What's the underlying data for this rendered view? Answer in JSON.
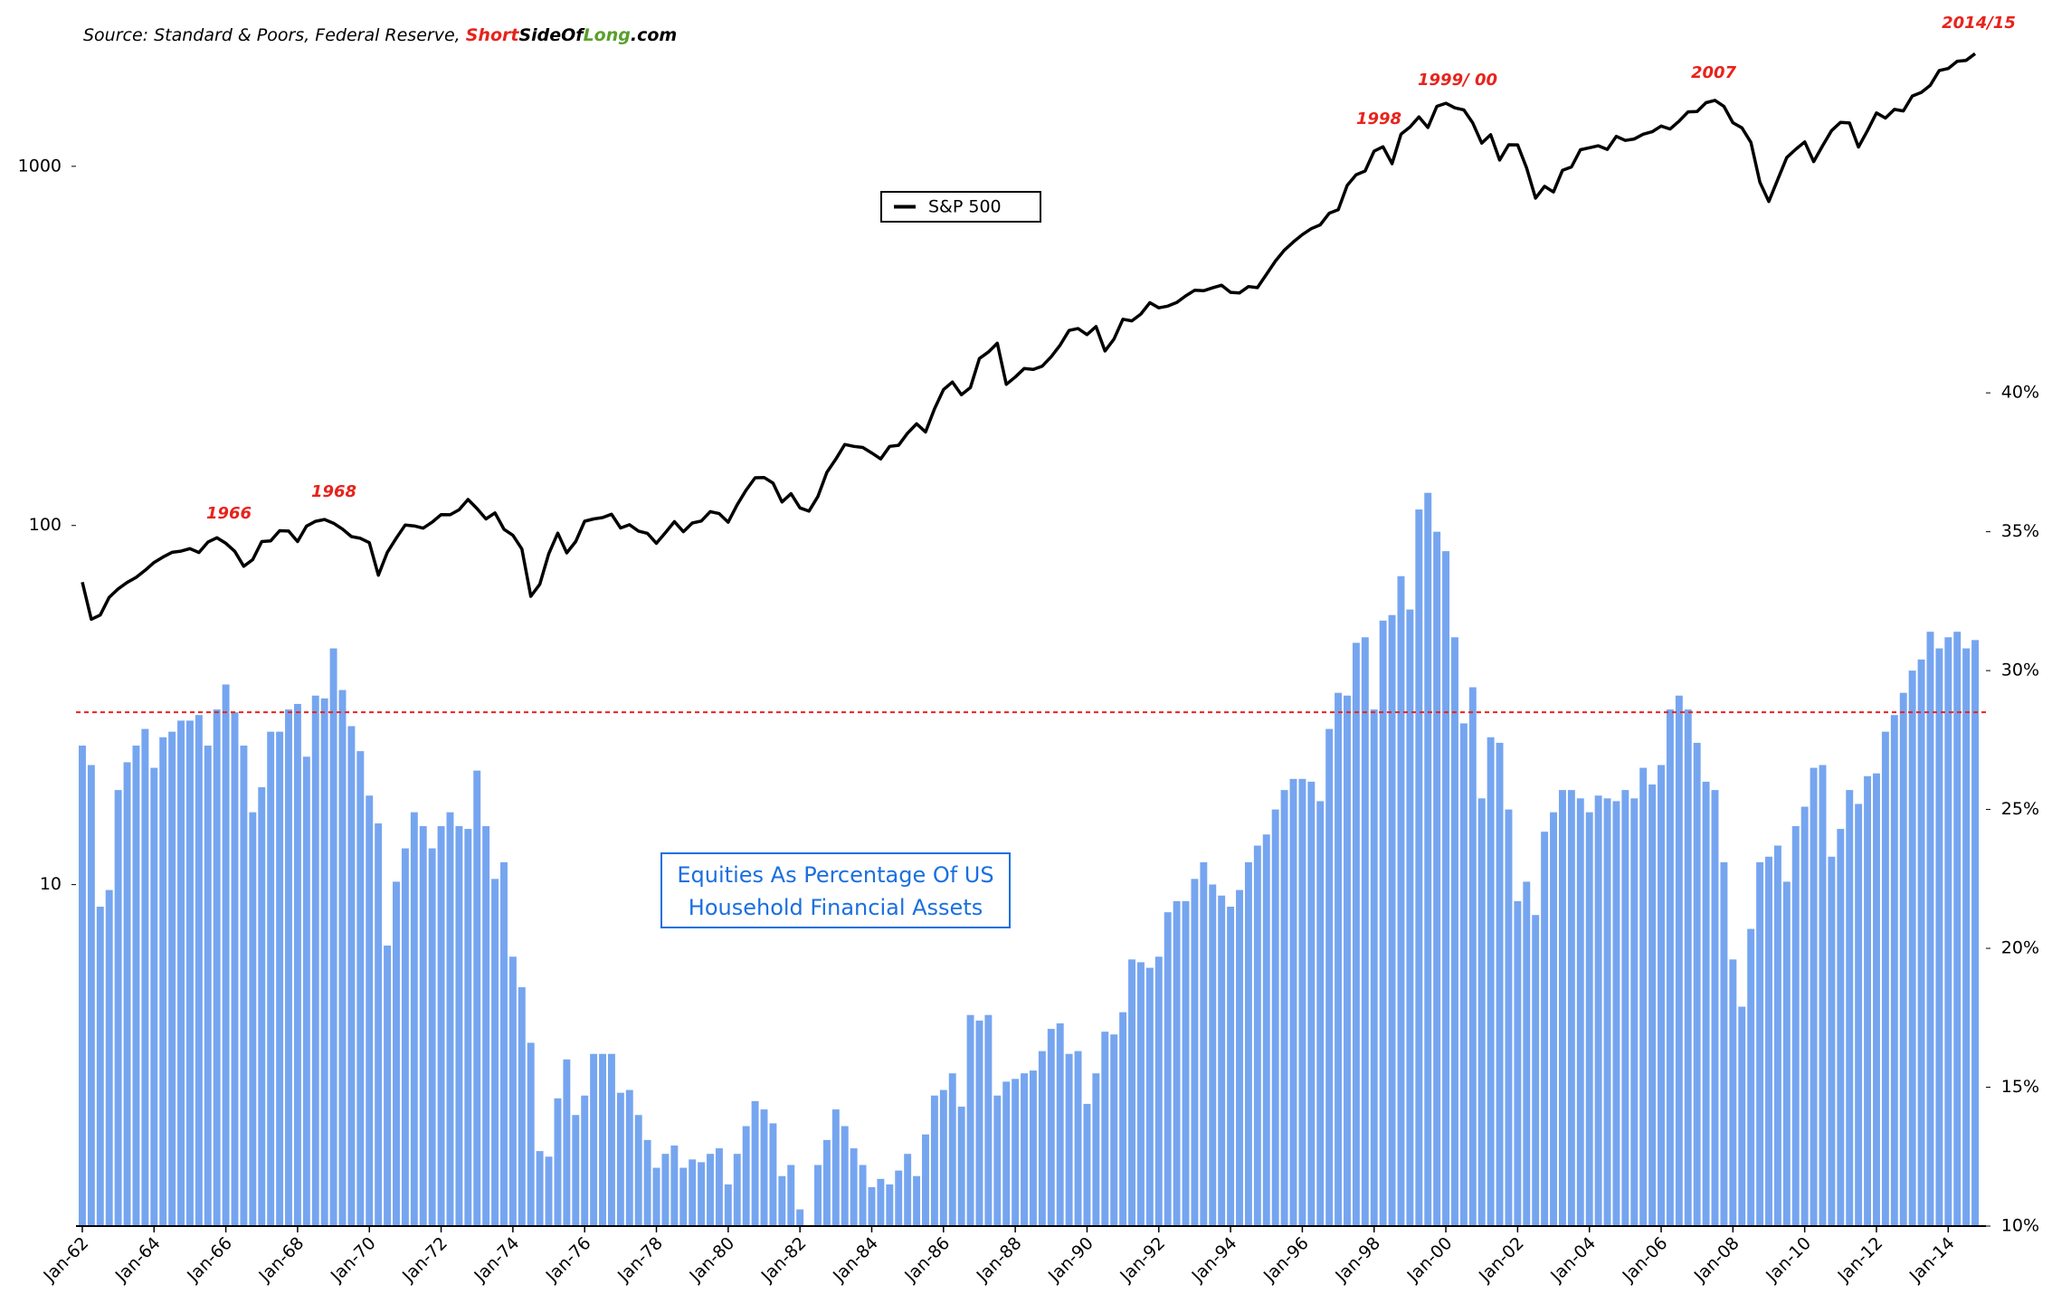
{
  "chart_data": {
    "type": "combo",
    "source": [
      "Source: Standard & Poors, Federal Reserve, ",
      "Short",
      "SideOf",
      "Long",
      ".com"
    ],
    "legend": "S&P 500",
    "annotations": [
      "1966",
      "1968",
      "1998",
      "1999/ 00",
      "2007",
      "2014/15"
    ],
    "ylog": true,
    "ylim": [
      1.12,
      2455
    ],
    "yticks": [
      10,
      100,
      1000
    ],
    "y2lim": [
      10,
      53.2
    ],
    "y2ticks": [
      {
        "value": 10,
        "label": "10%"
      },
      {
        "value": 15,
        "label": "15%"
      },
      {
        "value": 20,
        "label": "20%"
      },
      {
        "value": 25,
        "label": "25%"
      },
      {
        "value": 30,
        "label": "30%"
      },
      {
        "value": 35,
        "label": "35%"
      },
      {
        "value": 40,
        "label": "40%"
      }
    ],
    "hline": {
      "value": 28.5,
      "color": "#e8231c",
      "axis": "y2"
    },
    "categories": [
      "Jan-62",
      null,
      null,
      null,
      null,
      null,
      null,
      null,
      "Jan-64",
      null,
      null,
      null,
      null,
      null,
      null,
      null,
      "Jan-66",
      null,
      null,
      null,
      null,
      null,
      null,
      null,
      "Jan-68",
      null,
      null,
      null,
      null,
      null,
      null,
      null,
      "Jan-70",
      null,
      null,
      null,
      null,
      null,
      null,
      null,
      "Jan-72",
      null,
      null,
      null,
      null,
      null,
      null,
      null,
      "Jan-74",
      null,
      null,
      null,
      null,
      null,
      null,
      null,
      "Jan-76",
      null,
      null,
      null,
      null,
      null,
      null,
      null,
      "Jan-78",
      null,
      null,
      null,
      null,
      null,
      null,
      null,
      "Jan-80",
      null,
      null,
      null,
      null,
      null,
      null,
      null,
      "Jan-82",
      null,
      null,
      null,
      null,
      null,
      null,
      null,
      "Jan-84",
      null,
      null,
      null,
      null,
      null,
      null,
      null,
      "Jan-86",
      null,
      null,
      null,
      null,
      null,
      null,
      null,
      "Jan-88",
      null,
      null,
      null,
      null,
      null,
      null,
      null,
      "Jan-90",
      null,
      null,
      null,
      null,
      null,
      null,
      null,
      "Jan-92",
      null,
      null,
      null,
      null,
      null,
      null,
      null,
      "Jan-94",
      null,
      null,
      null,
      null,
      null,
      null,
      null,
      "Jan-96",
      null,
      null,
      null,
      null,
      null,
      null,
      null,
      "Jan-98",
      null,
      null,
      null,
      null,
      null,
      null,
      null,
      "Jan-00",
      null,
      null,
      null,
      null,
      null,
      null,
      null,
      "Jan-02",
      null,
      null,
      null,
      null,
      null,
      null,
      null,
      "Jan-04",
      null,
      null,
      null,
      null,
      null,
      null,
      null,
      "Jan-06",
      null,
      null,
      null,
      null,
      null,
      null,
      null,
      "Jan-08",
      null,
      null,
      null,
      null,
      null,
      null,
      null,
      "Jan-10",
      null,
      null,
      null,
      null,
      null,
      null,
      null,
      "Jan-12",
      null,
      null,
      null,
      null,
      null,
      null,
      null,
      "Jan-14",
      null,
      null,
      null
    ],
    "series": [
      {
        "name": "Equities As Percentage Of US Household Financial Assets",
        "type": "bar",
        "axis": "y2",
        "color": "#76a5f0",
        "values": [
          27.3,
          26.6,
          21.5,
          22.1,
          25.7,
          26.7,
          27.3,
          27.9,
          26.5,
          27.6,
          27.8,
          28.2,
          28.2,
          28.4,
          27.3,
          28.6,
          29.5,
          28.5,
          27.3,
          24.9,
          25.8,
          27.8,
          27.8,
          28.6,
          28.8,
          26.9,
          29.1,
          29.0,
          30.8,
          29.3,
          28.0,
          27.1,
          25.5,
          24.5,
          20.1,
          22.4,
          23.6,
          24.9,
          24.4,
          23.6,
          24.4,
          24.9,
          24.4,
          24.3,
          26.4,
          24.4,
          22.5,
          23.1,
          19.7,
          18.6,
          16.6,
          12.7,
          12.5,
          14.6,
          16.0,
          14.0,
          14.7,
          16.2,
          16.2,
          16.2,
          14.8,
          14.9,
          14.0,
          13.1,
          12.1,
          12.6,
          12.9,
          12.1,
          12.4,
          12.3,
          12.6,
          12.8,
          11.5,
          12.6,
          13.6,
          14.5,
          14.2,
          13.7,
          11.8,
          12.2,
          10.6,
          10.0,
          12.2,
          13.1,
          14.2,
          13.6,
          12.8,
          12.2,
          11.4,
          11.7,
          11.5,
          12.0,
          12.6,
          11.8,
          13.3,
          14.7,
          14.9,
          15.5,
          14.3,
          17.6,
          17.4,
          17.6,
          14.7,
          15.2,
          15.3,
          15.5,
          15.6,
          16.3,
          17.1,
          17.3,
          16.2,
          16.3,
          14.4,
          15.5,
          17.0,
          16.9,
          17.7,
          19.6,
          19.5,
          19.3,
          19.7,
          21.3,
          21.7,
          21.7,
          22.5,
          23.1,
          22.3,
          21.9,
          21.5,
          22.1,
          23.1,
          23.7,
          24.1,
          25.0,
          25.7,
          26.1,
          26.1,
          26.0,
          25.3,
          27.9,
          29.2,
          29.1,
          31.0,
          31.2,
          28.6,
          31.8,
          32.0,
          33.4,
          32.2,
          35.8,
          36.4,
          35.0,
          34.3,
          31.2,
          28.1,
          29.4,
          25.4,
          27.6,
          27.4,
          25.0,
          21.7,
          22.4,
          21.2,
          24.2,
          24.9,
          25.7,
          25.7,
          25.4,
          24.9,
          25.5,
          25.4,
          25.3,
          25.7,
          25.4,
          26.5,
          25.9,
          26.6,
          28.6,
          29.1,
          28.6,
          27.4,
          26.0,
          25.7,
          23.1,
          19.6,
          17.9,
          20.7,
          23.1,
          23.3,
          23.7,
          22.4,
          24.4,
          25.1,
          26.5,
          26.6,
          23.3,
          24.3,
          25.7,
          25.2,
          26.2,
          26.3,
          27.8,
          28.4,
          29.2,
          30.0,
          30.4,
          31.4,
          30.8,
          31.2,
          31.4,
          30.8,
          31.1
        ]
      },
      {
        "name": "S&P 500",
        "type": "line",
        "axis": "y",
        "color": "#000000",
        "values": [
          69.5,
          54.8,
          56.3,
          63.1,
          66.6,
          69.4,
          71.7,
          75.0,
          78.9,
          81.7,
          84.2,
          84.8,
          86.2,
          84.1,
          89.9,
          92.4,
          89.2,
          84.7,
          77.0,
          80.3,
          90.2,
          90.6,
          96.7,
          96.5,
          90.2,
          99.6,
          102.7,
          103.9,
          101.5,
          97.7,
          93.1,
          92.1,
          89.6,
          72.7,
          84.2,
          92.2,
          100.3,
          99.7,
          98.3,
          102.1,
          107.2,
          107.1,
          110.6,
          118.1,
          111.5,
          104.3,
          108.4,
          97.6,
          93.9,
          86.0,
          63.5,
          68.6,
          83.4,
          95.2,
          83.9,
          90.2,
          102.8,
          104.3,
          105.2,
          107.5,
          98.4,
          100.5,
          96.5,
          95.1,
          89.2,
          95.5,
          102.5,
          96.1,
          101.6,
          102.9,
          109.3,
          107.9,
          102.1,
          114.2,
          125.5,
          135.8,
          136.0,
          131.2,
          116.2,
          122.6,
          111.9,
          109.6,
          120.4,
          140.6,
          153.0,
          168.1,
          166.1,
          164.9,
          159.2,
          153.2,
          166.1,
          167.2,
          180.7,
          191.9,
          182.1,
          211.3,
          238.9,
          250.8,
          231.3,
          242.2,
          291.7,
          304.0,
          321.8,
          247.1,
          258.9,
          273.5,
          271.9,
          277.7,
          294.9,
          317.9,
          349.2,
          353.4,
          339.9,
          358.0,
          306.1,
          330.2,
          375.2,
          371.2,
          387.9,
          417.1,
          403.7,
          408.1,
          417.8,
          435.7,
          451.7,
          450.5,
          458.9,
          466.5,
          445.8,
          444.3,
          462.7,
          459.3,
          500.7,
          544.8,
          584.4,
          615.9,
          645.5,
          670.6,
          687.3,
          740.7,
          757.1,
          885.1,
          947.3,
          970.4,
          1101.8,
          1133.8,
          1017.0,
          1229.2,
          1286.4,
          1372.7,
          1282.7,
          1469.3,
          1498.6,
          1454.6,
          1436.5,
          1320.3,
          1160.3,
          1224.4,
          1040.9,
          1148.1,
          1147.4,
          989.8,
          815.3,
          879.8,
          848.2,
          974.5,
          996.0,
          1111.9,
          1126.2,
          1140.8,
          1114.6,
          1211.9,
          1180.6,
          1191.3,
          1228.8,
          1248.3,
          1294.8,
          1270.2,
          1335.9,
          1418.3,
          1420.9,
          1503.4,
          1526.8,
          1468.4,
          1322.7,
          1280.0,
          1166.4,
          903.3,
          797.9,
          919.3,
          1057.1,
          1115.1,
          1169.4,
          1030.7,
          1141.2,
          1257.6,
          1325.8,
          1320.6,
          1131.4,
          1257.6,
          1408.5,
          1362.2,
          1440.7,
          1426.2,
          1569.2,
          1606.3,
          1681.6,
          1848.4,
          1872.3,
          1960.2,
          1972.3,
          2058.9
        ]
      }
    ]
  }
}
